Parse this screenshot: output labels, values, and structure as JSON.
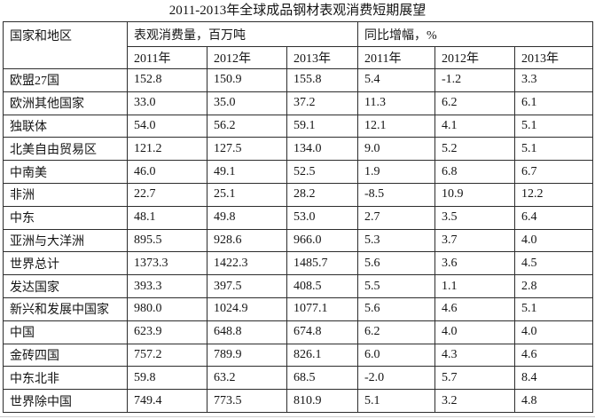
{
  "title": "2011-2013年全球成品钢材表观消费短期展望",
  "table": {
    "corner_header": "国家和地区",
    "group_headers": [
      "表观消费量，百万吨",
      "同比增幅，%"
    ],
    "year_headers": [
      "2011年",
      "2012年",
      "2013年",
      "2011年",
      "2012年",
      "2013年"
    ],
    "rows": [
      {
        "region": "欧盟27国",
        "values": [
          "152.8",
          "150.9",
          "155.8",
          "5.4",
          "-1.2",
          "3.3"
        ]
      },
      {
        "region": "欧洲其他国家",
        "values": [
          "33.0",
          "35.0",
          "37.2",
          "11.3",
          "6.2",
          "6.1"
        ]
      },
      {
        "region": "独联体",
        "values": [
          "54.0",
          "56.2",
          "59.1",
          "12.1",
          "4.1",
          "5.1"
        ]
      },
      {
        "region": "北美自由贸易区",
        "values": [
          "121.2",
          "127.5",
          "134.0",
          "9.0",
          "5.2",
          "5.1"
        ]
      },
      {
        "region": "中南美",
        "values": [
          "46.0",
          "49.1",
          "52.5",
          "1.9",
          "6.8",
          "6.7"
        ]
      },
      {
        "region": "非洲",
        "values": [
          "22.7",
          "25.1",
          "28.2",
          "-8.5",
          "10.9",
          "12.2"
        ]
      },
      {
        "region": "中东",
        "values": [
          "48.1",
          "49.8",
          "53.0",
          "2.7",
          "3.5",
          "6.4"
        ]
      },
      {
        "region": "亚洲与大洋洲",
        "values": [
          "895.5",
          "928.6",
          "966.0",
          "5.3",
          "3.7",
          "4.0"
        ]
      },
      {
        "region": "世界总计",
        "values": [
          "1373.3",
          "1422.3",
          "1485.7",
          "5.6",
          "3.6",
          "4.5"
        ]
      },
      {
        "region": "发达国家",
        "values": [
          "393.3",
          "397.5",
          "408.5",
          "5.5",
          "1.1",
          "2.8"
        ]
      },
      {
        "region": "新兴和发展中国家",
        "values": [
          "980.0",
          "1024.9",
          "1077.1",
          "5.6",
          "4.6",
          "5.1"
        ]
      },
      {
        "region": "中国",
        "values": [
          "623.9",
          "648.8",
          "674.8",
          "6.2",
          "4.0",
          "4.0"
        ]
      },
      {
        "region": "金砖四国",
        "values": [
          "757.2",
          "789.9",
          "826.1",
          "6.0",
          "4.3",
          "4.6"
        ]
      },
      {
        "region": "中东北非",
        "values": [
          "59.8",
          "63.2",
          "68.5",
          "-2.0",
          "5.7",
          "8.4"
        ]
      },
      {
        "region": "世界除中国",
        "values": [
          "749.4",
          "773.5",
          "810.9",
          "5.1",
          "3.2",
          "4.8"
        ]
      }
    ]
  },
  "colors": {
    "background": "#ffffff",
    "text": "#141414",
    "border": "#2d2d2d",
    "bottom_divider": "#c9c9c9"
  }
}
